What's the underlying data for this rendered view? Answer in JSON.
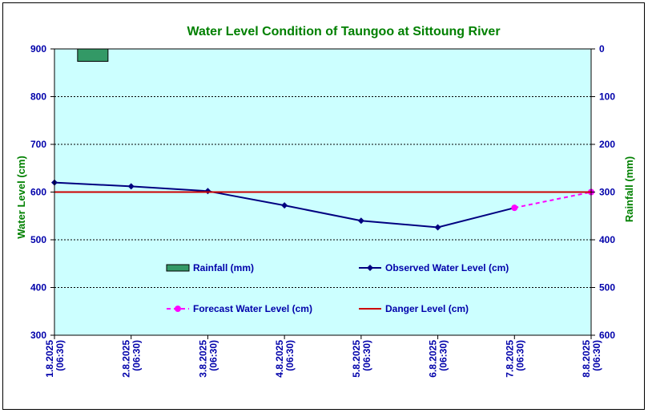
{
  "chart_data": {
    "type": "line",
    "title": "Water Level Condition of Taungoo at  Sittoung River",
    "y_left_label": "Water Level (cm)",
    "y_right_label": "Rainfall (mm)",
    "y_left_range": [
      300,
      900
    ],
    "y_left_ticks": [
      "300",
      "400",
      "500",
      "600",
      "700",
      "800",
      "900"
    ],
    "y_right_range": [
      0,
      600
    ],
    "y_right_inverted": true,
    "y_right_ticks": [
      "0",
      "100",
      "200",
      "300",
      "400",
      "500",
      "600"
    ],
    "grid": true,
    "plot_background": "#ccffff",
    "categories": [
      {
        "date": "1.8.2025",
        "time": "(06:30)"
      },
      {
        "date": "2.8.2025",
        "time": "(06:30)"
      },
      {
        "date": "3.8.2025",
        "time": "(06:30)"
      },
      {
        "date": "4.8.2025",
        "time": "(06:30)"
      },
      {
        "date": "5.8.2025",
        "time": "(06:30)"
      },
      {
        "date": "6.8.2025",
        "time": "(06:30)"
      },
      {
        "date": "7.8.2025",
        "time": "(06:30)"
      },
      {
        "date": "8.8.2025",
        "time": "(06:30)"
      }
    ],
    "series": [
      {
        "name": "Rainfall (mm)",
        "kind": "bar",
        "axis": "right",
        "color": "#339966",
        "values": [
          26,
          0,
          0,
          0,
          0,
          0,
          0,
          0
        ]
      },
      {
        "name": "Observed Water Level (cm)",
        "kind": "line",
        "axis": "left",
        "color": "#000080",
        "values": [
          620,
          612,
          602,
          572,
          540,
          526,
          567,
          null
        ]
      },
      {
        "name": "Forecast Water Level (cm)",
        "kind": "dashed-line",
        "axis": "left",
        "color": "#ff00ff",
        "values": [
          null,
          null,
          null,
          null,
          null,
          null,
          567,
          600
        ]
      },
      {
        "name": "Danger Level (cm)",
        "kind": "hline",
        "axis": "left",
        "color": "#cc0000",
        "value": 600
      }
    ]
  }
}
